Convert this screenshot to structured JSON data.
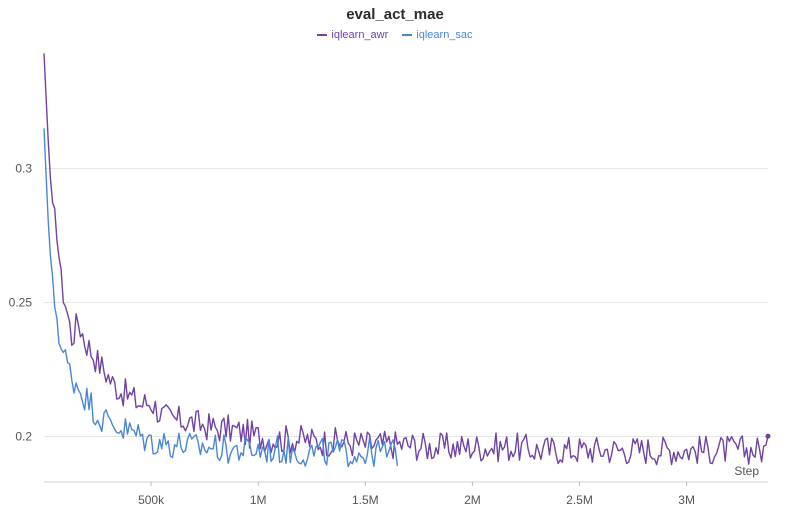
{
  "chart_data": {
    "type": "line",
    "title": "eval_act_mae",
    "xlabel": "Step",
    "ylabel": "",
    "xlim": [
      0,
      3380000
    ],
    "ylim": [
      0.183,
      0.345
    ],
    "grid": true,
    "legend_position": "top-center",
    "xticks": [
      {
        "value": 500000,
        "label": "500k"
      },
      {
        "value": 1000000,
        "label": "1M"
      },
      {
        "value": 1500000,
        "label": "1.5M"
      },
      {
        "value": 2000000,
        "label": "2M"
      },
      {
        "value": 2500000,
        "label": "2.5M"
      },
      {
        "value": 3000000,
        "label": "3M"
      }
    ],
    "yticks": [
      {
        "value": 0.2,
        "label": "0.2"
      },
      {
        "value": 0.25,
        "label": "0.25"
      },
      {
        "value": 0.3,
        "label": "0.3"
      }
    ],
    "series": [
      {
        "name": "iqlearn_awr",
        "color": "#6f42a4",
        "x": [
          0,
          20000,
          40000,
          60000,
          80000,
          100000,
          130000,
          160000,
          190000,
          220000,
          250000,
          280000,
          320000,
          360000,
          400000,
          450000,
          500000,
          550000,
          600000,
          650000,
          700000,
          750000,
          800000,
          850000,
          900000,
          1000000,
          1100000,
          1200000,
          1300000,
          1400000,
          1500000,
          1600000,
          1700000,
          1800000,
          1900000,
          2000000,
          2100000,
          2200000,
          2300000,
          2400000,
          2500000,
          2600000,
          2700000,
          2800000,
          2900000,
          3000000,
          3100000,
          3200000,
          3300000,
          3380000
        ],
        "y": [
          0.343,
          0.31,
          0.283,
          0.278,
          0.258,
          0.25,
          0.237,
          0.243,
          0.236,
          0.232,
          0.228,
          0.225,
          0.22,
          0.217,
          0.215,
          0.212,
          0.213,
          0.208,
          0.206,
          0.206,
          0.205,
          0.204,
          0.203,
          0.203,
          0.202,
          0.2,
          0.199,
          0.199,
          0.198,
          0.198,
          0.197,
          0.197,
          0.197,
          0.196,
          0.196,
          0.196,
          0.196,
          0.196,
          0.195,
          0.195,
          0.195,
          0.195,
          0.195,
          0.195,
          0.195,
          0.195,
          0.195,
          0.195,
          0.195,
          0.195
        ]
      },
      {
        "name": "iqlearn_sac",
        "color": "#4a86d8",
        "x": [
          0,
          20000,
          40000,
          60000,
          80000,
          100000,
          130000,
          160000,
          190000,
          220000,
          250000,
          280000,
          320000,
          360000,
          400000,
          450000,
          500000,
          550000,
          600000,
          650000,
          700000,
          750000,
          800000,
          850000,
          900000,
          1000000,
          1100000,
          1200000,
          1300000,
          1400000,
          1500000,
          1600000,
          1650000
        ],
        "y": [
          0.315,
          0.28,
          0.255,
          0.245,
          0.233,
          0.229,
          0.222,
          0.219,
          0.215,
          0.212,
          0.208,
          0.206,
          0.205,
          0.203,
          0.202,
          0.2,
          0.198,
          0.198,
          0.197,
          0.197,
          0.196,
          0.196,
          0.196,
          0.195,
          0.195,
          0.195,
          0.195,
          0.194,
          0.194,
          0.194,
          0.194,
          0.194,
          0.194
        ]
      }
    ]
  }
}
